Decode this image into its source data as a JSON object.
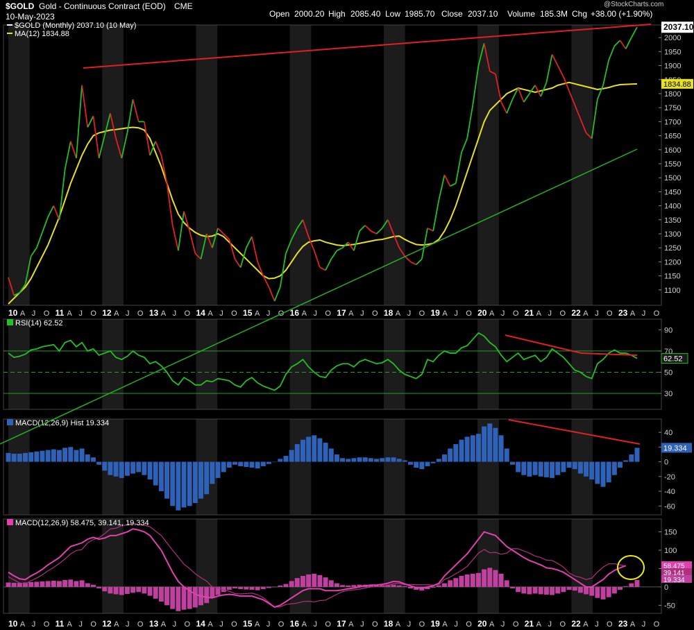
{
  "header": {
    "symbol": "$GOLD",
    "description": "Gold - Continuous Contract (EOD)",
    "exchange": "CME",
    "date": "10-May-2023",
    "watermark": "@StockCharts.com",
    "open_label": "Open",
    "open": "2000.20",
    "high_label": "High",
    "high": "2085.40",
    "low_label": "Low",
    "low": "1985.70",
    "close_label": "Close",
    "close": "2037.10",
    "volume_label": "Volume",
    "volume": "185.3M",
    "chg_label": "Chg",
    "chg": "+38.00 (+1.90%)"
  },
  "colors": {
    "up": "#22c022",
    "down": "#e02222",
    "ma": "#e8e020",
    "resistance": "#e02020",
    "support": "#22b022",
    "rsi": "#22c022",
    "hist": "#2e62b8",
    "macd": "#e040b0",
    "signal": "#b03080",
    "macd_hist": "#c040a0",
    "circle": "#f0f000",
    "band": "#1c1c1c"
  },
  "chart_data": [
    {
      "type": "line",
      "panel": "price",
      "legend": [
        "$GOLD (Monthly) 2037.10 (10 May)",
        "MA(12) 1834.88"
      ],
      "y_ticks": [
        1100,
        1150,
        1200,
        1250,
        1300,
        1350,
        1400,
        1450,
        1500,
        1550,
        1600,
        1650,
        1700,
        1750,
        1800,
        1850,
        1900,
        1950,
        2000
      ],
      "last_price_label": "2037.10",
      "ma_label": "1834.88",
      "ylim": [
        1045,
        2045
      ],
      "close": [
        1145,
        1080,
        1090,
        1120,
        1220,
        1250,
        1305,
        1360,
        1400,
        1350,
        1530,
        1630,
        1570,
        1830,
        1680,
        1720,
        1570,
        1650,
        1730,
        1640,
        1570,
        1660,
        1780,
        1700,
        1700,
        1580,
        1630,
        1580,
        1480,
        1330,
        1240,
        1380,
        1310,
        1230,
        1210,
        1300,
        1250,
        1320,
        1300,
        1280,
        1210,
        1180,
        1250,
        1290,
        1200,
        1150,
        1110,
        1060,
        1110,
        1230,
        1280,
        1320,
        1350,
        1290,
        1240,
        1180,
        1170,
        1210,
        1240,
        1250,
        1270,
        1240,
        1310,
        1330,
        1310,
        1300,
        1320,
        1350,
        1300,
        1250,
        1220,
        1200,
        1190,
        1210,
        1320,
        1310,
        1420,
        1510,
        1470,
        1480,
        1590,
        1640,
        1760,
        1900,
        1980,
        1880,
        1870,
        1770,
        1730,
        1780,
        1820,
        1770,
        1800,
        1830,
        1790,
        1840,
        1940,
        1900,
        1860,
        1810,
        1760,
        1710,
        1660,
        1640,
        1780,
        1830,
        1920,
        1970,
        1990,
        1960,
        2000,
        2037
      ],
      "ma12": [
        1050,
        1070,
        1090,
        1110,
        1140,
        1180,
        1220,
        1260,
        1310,
        1360,
        1420,
        1480,
        1530,
        1580,
        1620,
        1650,
        1660,
        1665,
        1670,
        1672,
        1675,
        1678,
        1680,
        1678,
        1670,
        1640,
        1590,
        1540,
        1480,
        1420,
        1370,
        1340,
        1320,
        1305,
        1295,
        1290,
        1292,
        1300,
        1290,
        1270,
        1250,
        1230,
        1210,
        1190,
        1170,
        1150,
        1140,
        1142,
        1150,
        1170,
        1200,
        1230,
        1255,
        1270,
        1275,
        1278,
        1270,
        1265,
        1260,
        1258,
        1260,
        1262,
        1266,
        1270,
        1274,
        1278,
        1280,
        1285,
        1290,
        1292,
        1280,
        1270,
        1262,
        1260,
        1262,
        1266,
        1280,
        1310,
        1350,
        1400,
        1460,
        1520,
        1580,
        1640,
        1700,
        1740,
        1760,
        1780,
        1800,
        1810,
        1820,
        1815,
        1810,
        1805,
        1810,
        1815,
        1820,
        1830,
        1835,
        1840,
        1835,
        1830,
        1825,
        1820,
        1815,
        1818,
        1822,
        1828,
        1832,
        1833,
        1834,
        1835
      ]
    },
    {
      "type": "line",
      "panel": "rsi",
      "legend": "RSI(14) 62.52",
      "y_ticks": [
        30,
        50,
        70,
        90
      ],
      "value_label": "62.52",
      "ylim": [
        15,
        100
      ],
      "values": [
        68,
        64,
        65,
        67,
        71,
        72,
        74,
        75,
        76,
        70,
        78,
        80,
        74,
        78,
        70,
        72,
        66,
        68,
        70,
        64,
        62,
        65,
        70,
        66,
        64,
        58,
        60,
        56,
        50,
        42,
        38,
        45,
        42,
        38,
        38,
        42,
        41,
        44,
        43,
        42,
        38,
        36,
        42,
        45,
        40,
        37,
        35,
        33,
        37,
        48,
        55,
        58,
        62,
        55,
        50,
        46,
        45,
        52,
        56,
        58,
        58,
        55,
        60,
        62,
        60,
        58,
        59,
        62,
        58,
        52,
        48,
        46,
        44,
        48,
        62,
        60,
        66,
        70,
        68,
        68,
        73,
        75,
        81,
        87,
        84,
        78,
        74,
        66,
        60,
        64,
        68,
        62,
        64,
        66,
        60,
        64,
        72,
        68,
        64,
        58,
        52,
        50,
        46,
        44,
        58,
        62,
        68,
        71,
        68,
        68,
        66,
        63
      ]
    },
    {
      "type": "bar",
      "panel": "macd-histogram",
      "legend": "MACD(12,26,9) Hist 19.334",
      "y_ticks": [
        -60,
        -40,
        -20,
        0,
        20,
        40
      ],
      "value_label": "19.334",
      "ylim": [
        -72,
        58
      ],
      "values": [
        12,
        11,
        11,
        12,
        13,
        14,
        15,
        16,
        17,
        16,
        19,
        20,
        16,
        18,
        10,
        6,
        -4,
        -12,
        -18,
        -20,
        -22,
        -19,
        -16,
        -14,
        -18,
        -24,
        -32,
        -40,
        -50,
        -60,
        -66,
        -62,
        -60,
        -56,
        -50,
        -44,
        -30,
        -22,
        -14,
        -8,
        -4,
        -6,
        -7,
        -8,
        -9,
        -6,
        -3,
        0,
        4,
        8,
        16,
        24,
        30,
        34,
        36,
        32,
        26,
        18,
        10,
        5,
        4,
        5,
        6,
        6,
        5,
        4,
        5,
        6,
        6,
        4,
        2,
        -4,
        -8,
        -10,
        -6,
        -2,
        4,
        10,
        18,
        24,
        30,
        34,
        36,
        38,
        48,
        52,
        46,
        36,
        18,
        -4,
        -14,
        -18,
        -20,
        -18,
        -20,
        -21,
        -22,
        -18,
        -14,
        -8,
        -10,
        -16,
        -20,
        -24,
        -30,
        -34,
        -28,
        -18,
        -8,
        2,
        10,
        19
      ]
    },
    {
      "type": "line",
      "panel": "macd",
      "legend": "MACD(12,26,9) 58.475, 39.141, 19.334",
      "y_ticks": [
        -50,
        0,
        50,
        100,
        150
      ],
      "value_labels": [
        "58.475",
        "39.141",
        "19.334"
      ],
      "ylim": [
        -72,
        185
      ],
      "macd": [
        40,
        30,
        22,
        20,
        30,
        38,
        48,
        60,
        70,
        80,
        95,
        110,
        115,
        120,
        130,
        135,
        130,
        133,
        140,
        140,
        145,
        150,
        158,
        155,
        150,
        140,
        120,
        100,
        70,
        40,
        15,
        0,
        -10,
        -20,
        -25,
        -28,
        -30,
        -25,
        -22,
        -20,
        -22,
        -25,
        -25,
        -25,
        -30,
        -35,
        -45,
        -55,
        -50,
        -40,
        -30,
        -20,
        -10,
        -5,
        -5,
        -5,
        -10,
        -10,
        -10,
        -8,
        -5,
        -3,
        0,
        3,
        5,
        5,
        7,
        10,
        15,
        14,
        8,
        3,
        -2,
        -4,
        0,
        3,
        10,
        30,
        45,
        60,
        75,
        90,
        110,
        130,
        150,
        145,
        140,
        125,
        110,
        100,
        90,
        80,
        72,
        66,
        60,
        52,
        50,
        46,
        40,
        30,
        20,
        10,
        0,
        0,
        10,
        20,
        35,
        45,
        52,
        58
      ]
    }
  ],
  "x_axis": {
    "years": [
      "10",
      "11",
      "12",
      "13",
      "14",
      "15",
      "16",
      "17",
      "18",
      "19",
      "20",
      "21",
      "22",
      "23"
    ],
    "month_letters": [
      "A",
      "J",
      "O"
    ],
    "year_start_index": 0
  },
  "overlays": {
    "resistance_label": "",
    "support_label": ""
  }
}
